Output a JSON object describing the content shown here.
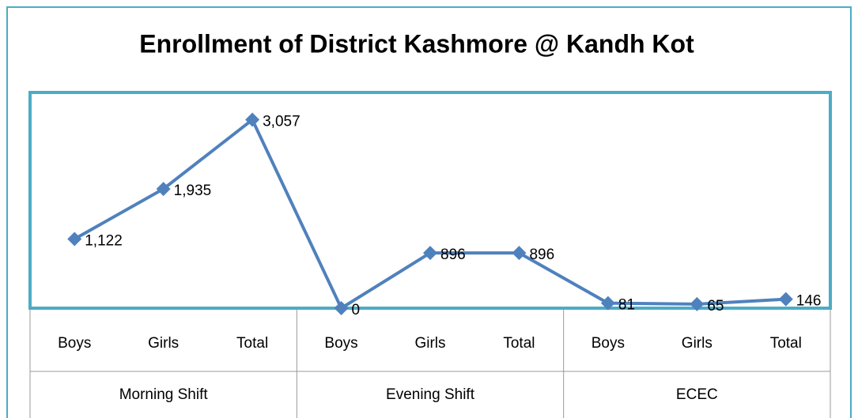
{
  "chart_data": {
    "type": "line",
    "title": "Enrollment of District Kashmore @ Kandh Kot",
    "categories": [
      "Boys",
      "Girls",
      "Total",
      "Boys",
      "Girls",
      "Total",
      "Boys",
      "Girls",
      "Total"
    ],
    "groups": [
      "Morning Shift",
      "Evening Shift",
      "ECEC"
    ],
    "values": [
      1122,
      1935,
      3057,
      0,
      896,
      896,
      81,
      65,
      146
    ],
    "value_labels": [
      "1,122",
      "1,935",
      "3,057",
      "0",
      "896",
      "896",
      "81",
      "65",
      "146"
    ],
    "color": "#4f81bd",
    "ylim": [
      0,
      3500
    ]
  }
}
